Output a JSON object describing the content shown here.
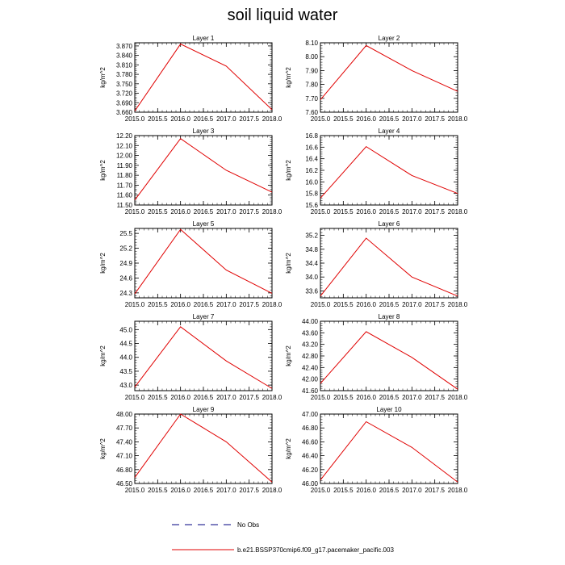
{
  "title": "soil liquid water",
  "legend": [
    {
      "label": "No Obs",
      "color": "#000080",
      "dash": true
    },
    {
      "label": "b.e21.BSSP370cmip6.f09_g17.pacemaker_pacific.003",
      "color": "#e00000",
      "dash": false
    }
  ],
  "chart_data": [
    {
      "type": "line",
      "title": "Layer 1",
      "ylabel": "kg/m^2",
      "x": [
        2015.0,
        2016.0,
        2017.0,
        2018.0
      ],
      "xticks": [
        "2015.0",
        "2015.5",
        "2016.0",
        "2016.5",
        "2017.0",
        "2017.5",
        "2018.0"
      ],
      "yticks": [
        "3.660",
        "3.690",
        "3.720",
        "3.750",
        "3.780",
        "3.810",
        "3.840",
        "3.870"
      ],
      "ylim": [
        3.66,
        3.88
      ],
      "xlim": [
        2015.0,
        2018.0
      ],
      "series": [
        {
          "values": [
            3.664,
            3.876,
            3.806,
            3.668
          ]
        }
      ]
    },
    {
      "type": "line",
      "title": "Layer 2",
      "ylabel": "kg/m^2",
      "x": [
        2015.0,
        2016.0,
        2017.0,
        2018.0
      ],
      "xticks": [
        "2015.0",
        "2015.5",
        "2016.0",
        "2016.5",
        "2017.0",
        "2017.5",
        "2018.0"
      ],
      "yticks": [
        "7.60",
        "7.70",
        "7.80",
        "7.90",
        "8.00",
        "8.10"
      ],
      "ylim": [
        7.6,
        8.1
      ],
      "xlim": [
        2015.0,
        2018.0
      ],
      "series": [
        {
          "values": [
            7.69,
            8.08,
            7.9,
            7.75
          ]
        }
      ]
    },
    {
      "type": "line",
      "title": "Layer 3",
      "ylabel": "kg/m^2",
      "x": [
        2015.0,
        2016.0,
        2017.0,
        2018.0
      ],
      "xticks": [
        "2015.0",
        "2015.5",
        "2016.0",
        "2016.5",
        "2017.0",
        "2017.5",
        "2018.0"
      ],
      "yticks": [
        "11.50",
        "11.60",
        "11.70",
        "11.80",
        "11.90",
        "12.00",
        "12.10",
        "12.20"
      ],
      "ylim": [
        11.5,
        12.2
      ],
      "xlim": [
        2015.0,
        2018.0
      ],
      "series": [
        {
          "values": [
            11.55,
            12.17,
            11.85,
            11.63
          ]
        }
      ]
    },
    {
      "type": "line",
      "title": "Layer 4",
      "ylabel": "kg/m^2",
      "x": [
        2015.0,
        2016.0,
        2017.0,
        2018.0
      ],
      "xticks": [
        "2015.0",
        "2015.5",
        "2016.0",
        "2016.5",
        "2017.0",
        "2017.5",
        "2018.0"
      ],
      "yticks": [
        "15.6",
        "15.8",
        "16.0",
        "16.2",
        "16.4",
        "16.6",
        "16.8"
      ],
      "ylim": [
        15.6,
        16.8
      ],
      "xlim": [
        2015.0,
        2018.0
      ],
      "series": [
        {
          "values": [
            15.72,
            16.61,
            16.11,
            15.8
          ]
        }
      ]
    },
    {
      "type": "line",
      "title": "Layer 5",
      "ylabel": "kg/m^2",
      "x": [
        2015.0,
        2016.0,
        2017.0,
        2018.0
      ],
      "xticks": [
        "2015.0",
        "2015.5",
        "2016.0",
        "2016.5",
        "2017.0",
        "2017.5",
        "2018.0"
      ],
      "yticks": [
        "24.3",
        "24.6",
        "24.9",
        "25.2",
        "25.5"
      ],
      "ylim": [
        24.2,
        25.6
      ],
      "xlim": [
        2015.0,
        2018.0
      ],
      "series": [
        {
          "values": [
            24.28,
            25.58,
            24.76,
            24.29
          ]
        }
      ]
    },
    {
      "type": "line",
      "title": "Layer 6",
      "ylabel": "kg/m^2",
      "x": [
        2015.0,
        2016.0,
        2017.0,
        2018.0
      ],
      "xticks": [
        "2015.0",
        "2015.5",
        "2016.0",
        "2016.5",
        "2017.0",
        "2017.5",
        "2018.0"
      ],
      "yticks": [
        "33.6",
        "34.0",
        "34.4",
        "34.8",
        "35.2"
      ],
      "ylim": [
        33.4,
        35.4
      ],
      "xlim": [
        2015.0,
        2018.0
      ],
      "series": [
        {
          "values": [
            33.45,
            35.12,
            34.0,
            33.45
          ]
        }
      ]
    },
    {
      "type": "line",
      "title": "Layer 7",
      "ylabel": "kg/m^2",
      "x": [
        2015.0,
        2016.0,
        2017.0,
        2018.0
      ],
      "xticks": [
        "2015.0",
        "2015.5",
        "2016.0",
        "2016.5",
        "2017.0",
        "2017.5",
        "2018.0"
      ],
      "yticks": [
        "43.0",
        "43.5",
        "44.0",
        "44.5",
        "45.0"
      ],
      "ylim": [
        42.8,
        45.3
      ],
      "xlim": [
        2015.0,
        2018.0
      ],
      "series": [
        {
          "values": [
            42.93,
            45.1,
            43.87,
            42.88
          ]
        }
      ]
    },
    {
      "type": "line",
      "title": "Layer 8",
      "ylabel": "kg/m^2",
      "x": [
        2015.0,
        2016.0,
        2017.0,
        2018.0
      ],
      "xticks": [
        "2015.0",
        "2015.5",
        "2016.0",
        "2016.5",
        "2017.0",
        "2017.5",
        "2018.0"
      ],
      "yticks": [
        "41.60",
        "42.00",
        "42.40",
        "42.80",
        "43.20",
        "43.60",
        "44.00"
      ],
      "ylim": [
        41.6,
        44.0
      ],
      "xlim": [
        2015.0,
        2018.0
      ],
      "series": [
        {
          "values": [
            41.85,
            43.64,
            42.75,
            41.65
          ]
        }
      ]
    },
    {
      "type": "line",
      "title": "Layer 9",
      "ylabel": "kg/m^2",
      "x": [
        2015.0,
        2016.0,
        2017.0,
        2018.0
      ],
      "xticks": [
        "2015.0",
        "2015.5",
        "2016.0",
        "2016.5",
        "2017.0",
        "2017.5",
        "2018.0"
      ],
      "yticks": [
        "46.50",
        "46.80",
        "47.10",
        "47.40",
        "47.70",
        "48.00"
      ],
      "ylim": [
        46.5,
        48.0
      ],
      "xlim": [
        2015.0,
        2018.0
      ],
      "series": [
        {
          "values": [
            46.63,
            48.0,
            47.4,
            46.53
          ]
        }
      ]
    },
    {
      "type": "line",
      "title": "Layer 10",
      "ylabel": "kg/m^2",
      "x": [
        2015.0,
        2016.0,
        2017.0,
        2018.0
      ],
      "xticks": [
        "2015.0",
        "2015.5",
        "2016.0",
        "2016.5",
        "2017.0",
        "2017.5",
        "2018.0"
      ],
      "yticks": [
        "46.00",
        "46.20",
        "46.40",
        "46.60",
        "46.80",
        "47.00"
      ],
      "ylim": [
        46.0,
        47.0
      ],
      "xlim": [
        2015.0,
        2018.0
      ],
      "series": [
        {
          "values": [
            46.05,
            46.89,
            46.52,
            46.02
          ]
        }
      ]
    }
  ]
}
